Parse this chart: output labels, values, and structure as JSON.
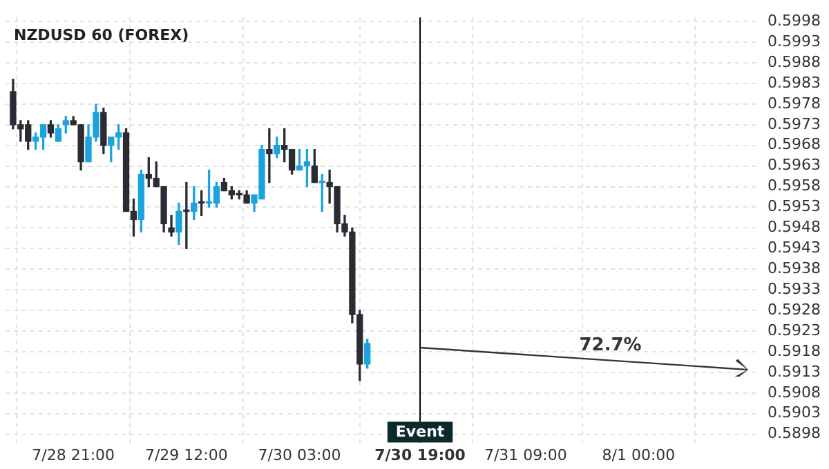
{
  "chart_data": {
    "type": "candlestick",
    "title": "NZDUSD 60 (FOREX)",
    "x": [
      "--07-28T13:00",
      "--07-28T14:00",
      "--07-28T15:00",
      "--07-28T16:00",
      "--07-28T17:00",
      "--07-28T18:00",
      "--07-28T19:00",
      "--07-28T20:00",
      "--07-28T21:00",
      "--07-28T22:00",
      "--07-28T23:00",
      "--07-29T00:00",
      "--07-29T01:00",
      "--07-29T02:00",
      "--07-29T03:00",
      "--07-29T04:00",
      "--07-29T05:00",
      "--07-29T06:00",
      "--07-29T07:00",
      "--07-29T08:00",
      "--07-29T09:00",
      "--07-29T10:00",
      "--07-29T11:00",
      "--07-29T12:00",
      "--07-29T13:00",
      "--07-29T14:00",
      "--07-29T15:00",
      "--07-29T16:00",
      "--07-29T17:00",
      "--07-29T18:00",
      "--07-29T19:00",
      "--07-29T20:00",
      "--07-29T21:00",
      "--07-29T22:00",
      "--07-29T23:00",
      "--07-30T00:00",
      "--07-30T01:00",
      "--07-30T02:00",
      "--07-30T03:00",
      "--07-30T04:00",
      "--07-30T05:00",
      "--07-30T06:00",
      "--07-30T07:00",
      "--07-30T08:00",
      "--07-30T09:00",
      "--07-30T10:00",
      "--07-30T11:00",
      "--07-30T12:00"
    ],
    "ohlc": [
      [
        0.5981,
        0.5984,
        0.5972,
        0.5973
      ],
      [
        0.5973,
        0.5974,
        0.5969,
        0.5972
      ],
      [
        0.5973,
        0.5974,
        0.5967,
        0.5969
      ],
      [
        0.5969,
        0.5971,
        0.5967,
        0.597
      ],
      [
        0.597,
        0.5973,
        0.5967,
        0.5973
      ],
      [
        0.5973,
        0.5974,
        0.597,
        0.5971
      ],
      [
        0.5969,
        0.5973,
        0.5969,
        0.5972
      ],
      [
        0.5973,
        0.5975,
        0.5971,
        0.5974
      ],
      [
        0.5974,
        0.5975,
        0.5973,
        0.5973
      ],
      [
        0.5973,
        0.5973,
        0.5962,
        0.5964
      ],
      [
        0.5964,
        0.5973,
        0.5964,
        0.597
      ],
      [
        0.597,
        0.5978,
        0.5969,
        0.5976
      ],
      [
        0.5976,
        0.5977,
        0.5966,
        0.5968
      ],
      [
        0.5968,
        0.597,
        0.5964,
        0.597
      ],
      [
        0.597,
        0.5973,
        0.5967,
        0.5971
      ],
      [
        0.5971,
        0.5972,
        0.5952,
        0.5952
      ],
      [
        0.5952,
        0.5955,
        0.5946,
        0.595
      ],
      [
        0.595,
        0.5962,
        0.5947,
        0.5961
      ],
      [
        0.5961,
        0.5965,
        0.5958,
        0.596
      ],
      [
        0.596,
        0.5964,
        0.5958,
        0.5958
      ],
      [
        0.5958,
        0.5958,
        0.5947,
        0.5949
      ],
      [
        0.5948,
        0.5951,
        0.5946,
        0.5947
      ],
      [
        0.5947,
        0.5954,
        0.5944,
        0.5952
      ],
      [
        0.5952,
        0.5959,
        0.5943,
        0.5952
      ],
      [
        0.5952,
        0.5958,
        0.595,
        0.5954
      ],
      [
        0.5954,
        0.5957,
        0.5951,
        0.5954
      ],
      [
        0.5954,
        0.5962,
        0.5953,
        0.5954
      ],
      [
        0.5954,
        0.5959,
        0.5953,
        0.5958
      ],
      [
        0.5959,
        0.596,
        0.5957,
        0.5957
      ],
      [
        0.5957,
        0.5958,
        0.5955,
        0.5956
      ],
      [
        0.5956,
        0.5957,
        0.5955,
        0.5956
      ],
      [
        0.5956,
        0.5957,
        0.5954,
        0.5954
      ],
      [
        0.5954,
        0.5956,
        0.5952,
        0.5956
      ],
      [
        0.5955,
        0.5968,
        0.5955,
        0.5967
      ],
      [
        0.5967,
        0.5972,
        0.5959,
        0.5966
      ],
      [
        0.5966,
        0.597,
        0.5965,
        0.5968
      ],
      [
        0.5968,
        0.5972,
        0.5964,
        0.5967
      ],
      [
        0.5967,
        0.5967,
        0.5961,
        0.5962
      ],
      [
        0.5962,
        0.5967,
        0.5962,
        0.5963
      ],
      [
        0.5963,
        0.5967,
        0.5958,
        0.5964
      ],
      [
        0.5963,
        0.5967,
        0.5959,
        0.5959
      ],
      [
        0.5959,
        0.5961,
        0.5952,
        0.5959
      ],
      [
        0.5959,
        0.5962,
        0.5954,
        0.5958
      ],
      [
        0.5958,
        0.5958,
        0.5947,
        0.5949
      ],
      [
        0.5949,
        0.5951,
        0.5946,
        0.5947
      ],
      [
        0.5947,
        0.5948,
        0.5925,
        0.5927
      ],
      [
        0.5927,
        0.5928,
        0.5911,
        0.5915
      ],
      [
        0.5915,
        0.5921,
        0.5914,
        0.592
      ]
    ],
    "colors": [
      "#2b2b33",
      "#2b2b33",
      "#2b2b33",
      "#1ba3dd",
      "#1ba3dd",
      "#2b2b33",
      "#1ba3dd",
      "#1ba3dd",
      "#2b2b33",
      "#2b2b33",
      "#1ba3dd",
      "#1ba3dd",
      "#2b2b33",
      "#1ba3dd",
      "#1ba3dd",
      "#2b2b33",
      "#2b2b33",
      "#1ba3dd",
      "#2b2b33",
      "#2b2b33",
      "#2b2b33",
      "#2b2b33",
      "#1ba3dd",
      "#2b2b33",
      "#1ba3dd",
      "#2b2b33",
      "#1ba3dd",
      "#1ba3dd",
      "#2b2b33",
      "#2b2b33",
      "#2b2b33",
      "#2b2b33",
      "#1ba3dd",
      "#1ba3dd",
      "#2b2b33",
      "#1ba3dd",
      "#2b2b33",
      "#2b2b33",
      "#1ba3dd",
      "#1ba3dd",
      "#2b2b33",
      "#1ba3dd",
      "#2b2b33",
      "#2b2b33",
      "#2b2b33",
      "#2b2b33",
      "#2b2b33",
      "#1ba3dd"
    ],
    "annotations": [
      "72.7%"
    ],
    "ref_lines": [
      {
        "axis": "x",
        "value": "--07-30T19:00",
        "label": "Event",
        "color": "#000000"
      }
    ],
    "xlim": [
      "--07-28T12:00",
      "--08-01T16:00"
    ],
    "xticks": [
      {
        "value": "--07-28T21:00",
        "label": "7/28 21:00"
      },
      {
        "value": "--07-29T12:00",
        "label": "7/29 12:00"
      },
      {
        "value": "--07-30T03:00",
        "label": "7/30 03:00"
      },
      {
        "value": "--07-30T19:00",
        "label": "7/30 19:00"
      },
      {
        "value": "--07-31T09:00",
        "label": "7/31 09:00"
      },
      {
        "value": "--08-01T00:00",
        "label": "8/1 00:00"
      }
    ],
    "ylim": [
      0.5896,
      0.5999
    ],
    "yticks": [
      0.5898,
      0.5903,
      0.5908,
      0.5913,
      0.5918,
      0.5923,
      0.5928,
      0.5933,
      0.5938,
      0.5943,
      0.5948,
      0.5953,
      0.5958,
      0.5963,
      0.5968,
      0.5973,
      0.5978,
      0.5983,
      0.5988,
      0.5993,
      0.5998
    ],
    "grid": true,
    "legend": false
  }
}
